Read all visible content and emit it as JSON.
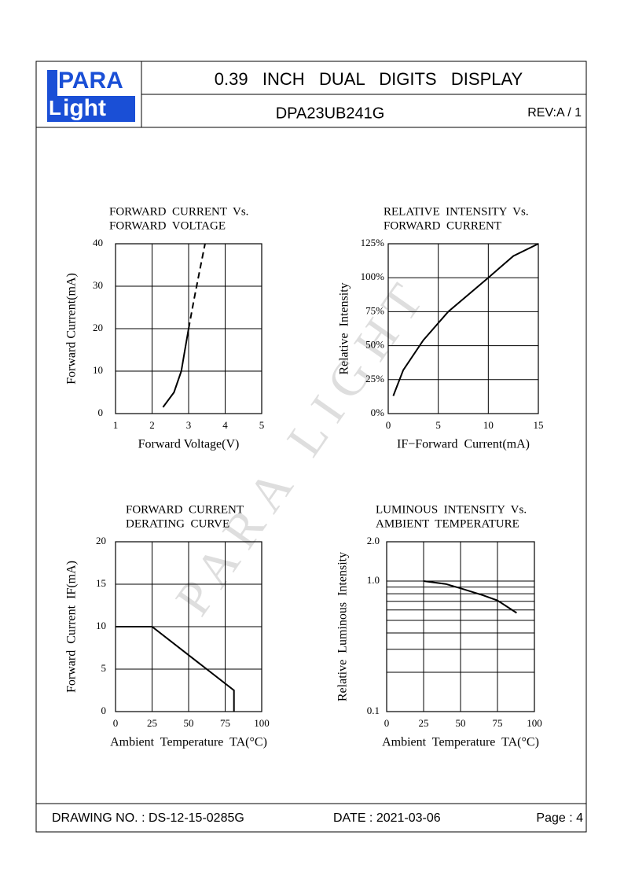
{
  "header": {
    "logo": {
      "top": "PARA",
      "letter": "L",
      "bottom": "ight"
    },
    "title": "0.39   INCH   DUAL   DIGITS   DISPLAY",
    "part": "DPA23UB241G",
    "rev": "REV:A / 1"
  },
  "watermark": "PARA LIGHT",
  "chart_data": [
    {
      "type": "line",
      "title": [
        "FORWARD  CURRENT  Vs.",
        "FORWARD  VOLTAGE"
      ],
      "x_label": "Forward Voltage(V)",
      "y_label": "Forward Current(mA)",
      "xlim": [
        1,
        5
      ],
      "xticks": [
        1,
        2,
        3,
        4,
        5
      ],
      "ylim": [
        0,
        40
      ],
      "yticks": [
        0,
        10,
        20,
        30,
        40
      ],
      "grid": true,
      "series": [
        {
          "color": "#000000",
          "style": "solid",
          "x": [
            2.3,
            2.6,
            2.8,
            2.9,
            3.0
          ],
          "values": [
            1.5,
            5,
            10,
            15,
            20
          ]
        },
        {
          "color": "#000000",
          "style": "dashed",
          "x": [
            3.0,
            3.15,
            3.3,
            3.45
          ],
          "values": [
            20,
            27,
            33.5,
            40
          ]
        }
      ]
    },
    {
      "type": "line",
      "title": [
        "RELATIVE  INTENSITY  Vs.",
        "FORWARD  CURRENT"
      ],
      "x_label": "IF−Forward  Current(mA)",
      "y_label": "Relative  Intensity",
      "xlim": [
        0,
        15
      ],
      "xticks": [
        0,
        5,
        10,
        15
      ],
      "ylim": [
        0,
        125
      ],
      "yticks": [
        {
          "value": 0,
          "label": "0%"
        },
        {
          "value": 25,
          "label": "25%"
        },
        {
          "value": 50,
          "label": "50%"
        },
        {
          "value": 75,
          "label": "75%"
        },
        {
          "value": 100,
          "label": "100%"
        },
        {
          "value": 125,
          "label": "125%"
        }
      ],
      "grid": true,
      "series": [
        {
          "color": "#000000",
          "style": "solid",
          "x": [
            0.5,
            1.5,
            3.5,
            6,
            10,
            12.5,
            15
          ],
          "values": [
            13,
            32,
            54,
            75,
            100,
            116,
            125
          ]
        }
      ]
    },
    {
      "type": "line",
      "title": [
        "FORWARD  CURRENT",
        "DERATING  CURVE"
      ],
      "x_label": "Ambient  Temperature  TA(°C)",
      "y_label": "Forward  Current  IF(mA)",
      "xlim": [
        0,
        100
      ],
      "xticks": [
        0,
        25,
        50,
        75,
        100
      ],
      "ylim": [
        0,
        20
      ],
      "yticks": [
        0,
        5,
        10,
        15,
        20
      ],
      "grid": true,
      "series": [
        {
          "color": "#000000",
          "style": "solid",
          "x": [
            0,
            25,
            81,
            81
          ],
          "values": [
            10,
            10,
            2.5,
            0
          ]
        }
      ]
    },
    {
      "type": "line",
      "title": [
        "LUMINOUS  INTENSITY  Vs.",
        "AMBIENT  TEMPERATURE"
      ],
      "x_label": "Ambient  Temperature  TA(°C)",
      "y_label": "Relative  Luminous  Intensity",
      "log_y": true,
      "xlim": [
        0,
        100
      ],
      "xticks": [
        0,
        25,
        50,
        75,
        100
      ],
      "ylim": [
        0.1,
        2
      ],
      "yticks": [
        0.1,
        {
          "value": 1,
          "label": "1.0"
        },
        {
          "value": 2,
          "label": "2.0"
        }
      ],
      "minor_grid_y": [
        0.2,
        0.3,
        0.4,
        0.5,
        0.6,
        0.7,
        0.8,
        0.9
      ],
      "grid": true,
      "series": [
        {
          "color": "#000000",
          "style": "solid",
          "x": [
            25,
            40,
            50,
            65,
            75,
            88
          ],
          "values": [
            1.0,
            0.95,
            0.88,
            0.78,
            0.71,
            0.57
          ]
        }
      ]
    }
  ],
  "footer": {
    "drawing": "DRAWING NO. : DS-12-15-0285G",
    "date": "DATE : 2021-03-06",
    "page": "Page : 4"
  }
}
